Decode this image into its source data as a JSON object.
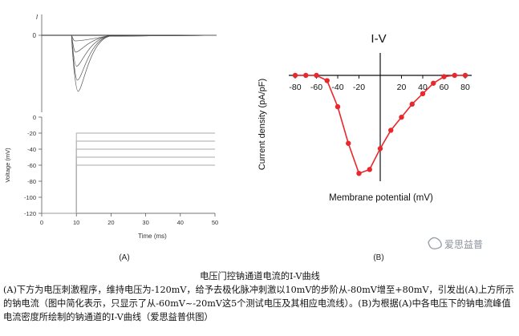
{
  "chart_data": [
    {
      "panel": "(A)",
      "type": "line",
      "subplots": [
        {
          "id": "current",
          "ylabel": "I",
          "y_ticks": [
            "0"
          ],
          "baseline": 0,
          "traces_depth": [
            0.1,
            0.3,
            0.55,
            0.8,
            1.0
          ],
          "trace_onset_ms": 10
        },
        {
          "id": "voltage",
          "ylabel": "Voltage (mV)",
          "xlabel": "Time (ms)",
          "xlim": [
            0,
            50
          ],
          "ylim": [
            -120,
            0
          ],
          "x_ticks": [
            0,
            10,
            20,
            30,
            40,
            50
          ],
          "y_ticks": [
            0,
            -20,
            -40,
            -60,
            -80,
            -100,
            -120
          ],
          "holding_mV": -120,
          "step_time_ms": 10,
          "steps_mV": [
            -20,
            -30,
            -40,
            -50,
            -60
          ]
        }
      ]
    },
    {
      "panel": "(B)",
      "type": "line",
      "title": "I-V",
      "xlabel": "Membrane potential (mV)",
      "ylabel": "Current density (pA/pF)",
      "xlim": [
        -90,
        90
      ],
      "x_ticks": [
        -80,
        -60,
        -40,
        -20,
        20,
        40,
        60,
        80
      ],
      "grid": false,
      "series": [
        {
          "color": "#e8282d",
          "x": [
            -80,
            -70,
            -60,
            -50,
            -40,
            -30,
            -20,
            -10,
            0,
            10,
            20,
            30,
            40,
            50,
            60,
            70,
            80
          ],
          "y": [
            0,
            0,
            0,
            -2,
            -12,
            -26,
            -37.5,
            -36,
            -28,
            -21,
            -16,
            -11,
            -7,
            -3,
            -0.5,
            0,
            0
          ]
        }
      ]
    }
  ],
  "watermark": "爱思益普",
  "caption": {
    "title": "电压门控钠通道电流的I-V曲线",
    "body": "(A)下方为电压刺激程序，维持电压为-120mV，给予去极化脉冲刺激以10mV的步阶从-80mV增至+80mV，引发出(A)上方所示的钠电流（图中简化表示，只显示了从-60mV~-20mV这5个测试电压及其相应电流线）。(B)为根据(A)中各电压下的钠电流峰值电流密度所绘制的钠通道的I-V曲线（爱思益普供图）"
  }
}
